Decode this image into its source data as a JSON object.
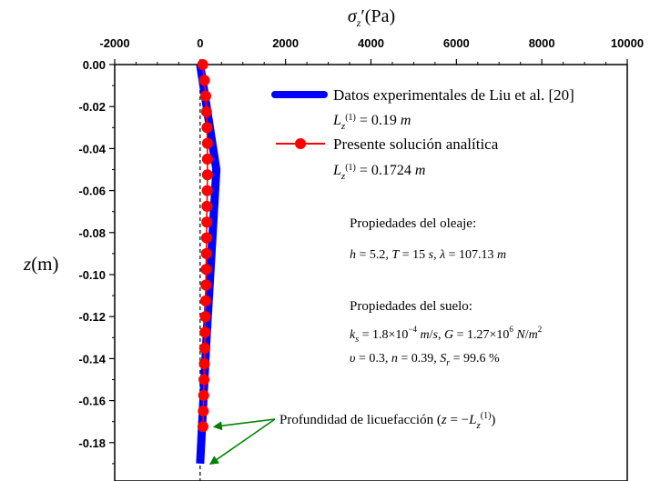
{
  "chart_data": {
    "type": "line",
    "xlabel": "σz′(Pa)",
    "ylabel": "z(m)",
    "xlim": [
      -2000,
      10000
    ],
    "ylim": [
      -0.19,
      0.0
    ],
    "x_ticks": [
      "-2000",
      "0",
      "2000",
      "4000",
      "6000",
      "8000",
      "10000"
    ],
    "x_tick_values": [
      -2000,
      0,
      2000,
      4000,
      6000,
      8000,
      10000
    ],
    "y_ticks": [
      "0.00",
      "-0.02",
      "-0.04",
      "-0.06",
      "-0.08",
      "-0.10",
      "-0.12",
      "-0.14",
      "-0.16",
      "-0.18"
    ],
    "y_tick_values": [
      0.0,
      -0.02,
      -0.04,
      -0.06,
      -0.08,
      -0.1,
      -0.12,
      -0.14,
      -0.16,
      -0.18
    ],
    "zero_line_x": 0,
    "grid": false,
    "legend_position": "top-right",
    "series": [
      {
        "name": "Datos experimentales de Liu et al. [20]",
        "sub_label": "Lz(1) = 0.19 m",
        "color": "#0000ff",
        "style": "thick-line",
        "x": [
          0,
          380,
          150,
          0
        ],
        "y": [
          0.0,
          -0.05,
          -0.13,
          -0.19
        ]
      },
      {
        "name": "Presente solución analítica",
        "sub_label": "Lz(1) = 0.1724 m",
        "color": "#ff0000",
        "style": "line-markers",
        "x": [
          60,
          100,
          130,
          150,
          160,
          170,
          170,
          170,
          165,
          160,
          155,
          150,
          145,
          140,
          135,
          128,
          120,
          112,
          105,
          98,
          90,
          82,
          74,
          66
        ],
        "y": [
          0.0,
          -0.0075,
          -0.015,
          -0.0225,
          -0.03,
          -0.0375,
          -0.045,
          -0.0525,
          -0.06,
          -0.0675,
          -0.075,
          -0.0825,
          -0.09,
          -0.0975,
          -0.105,
          -0.1125,
          -0.12,
          -0.1275,
          -0.135,
          -0.1425,
          -0.15,
          -0.1575,
          -0.165,
          -0.1724
        ]
      }
    ],
    "annotations": {
      "wave_title": "Propiedades del oleaje:",
      "wave_params": "h = 5.2, T = 15 s, λ = 107.13 m",
      "soil_title": "Propiedades del suelo:",
      "soil_line1": "ks = 1.8×10−4 m/s, G = 1.27×106 N/m2",
      "soil_line2": "υ = 0.3, n = 0.39, Sr = 99.6 %",
      "liquefaction_label": "Profundidad de licuefacción",
      "liquefaction_eq": "(z = −Lz(1))",
      "arrow_color": "#008000",
      "arrow_targets": [
        {
          "x": 170,
          "y": -0.1724
        },
        {
          "x": 80,
          "y": -0.19
        }
      ]
    }
  }
}
